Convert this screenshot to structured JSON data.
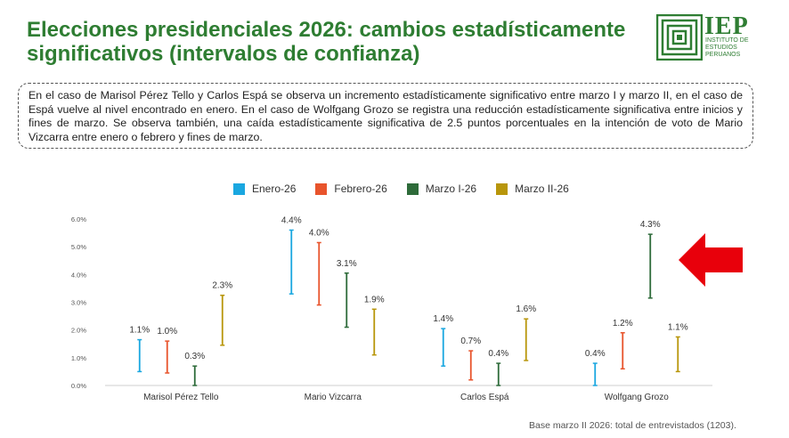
{
  "header": {
    "title": "Elecciones presidenciales 2026: cambios estadísticamente significativos (intervalos de confianza)"
  },
  "logo": {
    "acronym": "IEP",
    "line1": "INSTITUTO DE",
    "line2": "ESTUDIOS",
    "line3": "PERUANOS"
  },
  "callout": {
    "text": "En el caso de Marisol Pérez Tello y Carlos Espá se observa un incremento estadísticamente significativo entre marzo I y marzo II, en el caso de Espá vuelve al nivel encontrado en enero. En el caso de Wolfgang Grozo se registra una reducción estadísticamente significativa entre inicios y fines de marzo. Se observa también, una caída estadísticamente significativa de 2.5 puntos porcentuales en la intención de voto de Mario Vizcarra entre enero o febrero y fines de marzo."
  },
  "colors": {
    "title_green": "#2e7d32",
    "arrow_red": "#e8000b"
  },
  "arrow_icon": "arrow-left-icon",
  "footnote": "Base marzo II 2026: total de entrevistados (1203).",
  "chart_data": {
    "type": "errorbar",
    "categories": [
      "Marisol Pérez Tello",
      "Mario Vizcarra",
      "Carlos Espá",
      "Wolfgang Grozo"
    ],
    "ylim": [
      0,
      6
    ],
    "yticks": [
      "0.0%",
      "1.0%",
      "2.0%",
      "3.0%",
      "4.0%",
      "5.0%",
      "6.0%"
    ],
    "legend_position": "top",
    "grid": false,
    "series": [
      {
        "name": "Enero-26",
        "color": "#1aa7e0",
        "values": [
          1.1,
          4.4,
          1.4,
          0.4
        ],
        "labels": [
          "1.1%",
          "4.4%",
          "1.4%",
          "0.4%"
        ],
        "low": [
          0.5,
          3.3,
          0.7,
          0.0
        ],
        "high": [
          1.65,
          5.6,
          2.05,
          0.8
        ]
      },
      {
        "name": "Febrero-26",
        "color": "#e8542c",
        "values": [
          1.0,
          4.0,
          0.7,
          1.2
        ],
        "labels": [
          "1.0%",
          "4.0%",
          "0.7%",
          "1.2%"
        ],
        "low": [
          0.45,
          2.9,
          0.2,
          0.6
        ],
        "high": [
          1.6,
          5.15,
          1.25,
          1.9
        ]
      },
      {
        "name": "Marzo I-26",
        "color": "#2e6b3a",
        "values": [
          0.3,
          3.1,
          0.4,
          4.3
        ],
        "labels": [
          "0.3%",
          "3.1%",
          "0.4%",
          "4.3%"
        ],
        "low": [
          0.0,
          2.1,
          0.0,
          3.15
        ],
        "high": [
          0.7,
          4.05,
          0.8,
          5.45
        ]
      },
      {
        "name": "Marzo II-26",
        "color": "#b8960b",
        "values": [
          2.3,
          1.9,
          1.6,
          1.1
        ],
        "labels": [
          "2.3%",
          "1.9%",
          "1.6%",
          "1.1%"
        ],
        "low": [
          1.45,
          1.1,
          0.9,
          0.5
        ],
        "high": [
          3.25,
          2.75,
          2.4,
          1.75
        ]
      }
    ]
  }
}
